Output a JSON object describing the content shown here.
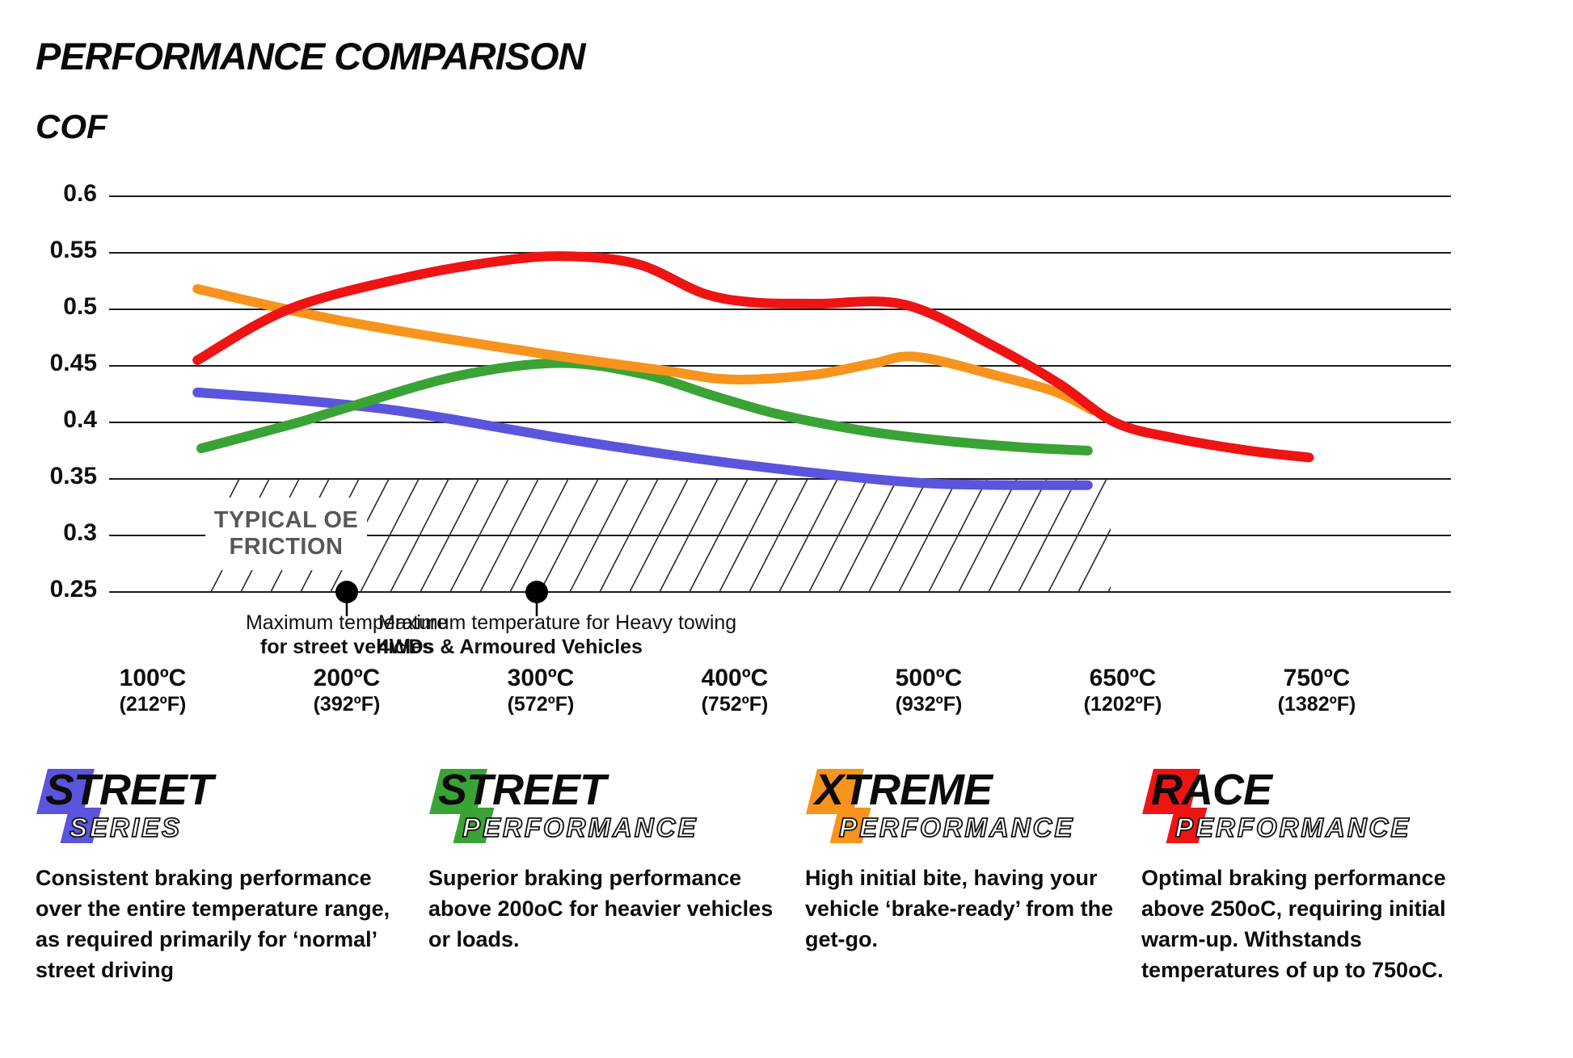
{
  "page": {
    "title": "PERFORMANCE COMPARISON",
    "y_axis_title": "COF"
  },
  "chart_data": {
    "type": "line",
    "title": "PERFORMANCE COMPARISON",
    "ylabel": "COF",
    "ylim": [
      0.25,
      0.6
    ],
    "grid": "horizontal",
    "y_ticks": [
      "0.6",
      "0.55",
      "0.5",
      "0.45",
      "0.4",
      "0.35",
      "0.3",
      "0.25"
    ],
    "y_tick_values": [
      0.6,
      0.55,
      0.5,
      0.45,
      0.4,
      0.35,
      0.3,
      0.25
    ],
    "x_temps": [
      100,
      200,
      300,
      400,
      500,
      650,
      750
    ],
    "x_labels": [
      {
        "c": "100ºC",
        "f": "(212ºF)"
      },
      {
        "c": "200ºC",
        "f": "(392ºF)"
      },
      {
        "c": "300ºC",
        "f": "(572ºF)"
      },
      {
        "c": "400ºC",
        "f": "(752ºF)"
      },
      {
        "c": "500ºC",
        "f": "(932ºF)"
      },
      {
        "c": "650ºC",
        "f": "(1202ºF)"
      },
      {
        "c": "750ºC",
        "f": "(1382ºF)"
      }
    ],
    "series": [
      {
        "name": "Street Series",
        "color": "#5b54dd",
        "points": [
          [
            123,
            0.4265
          ],
          [
            173,
            0.42
          ],
          [
            219,
            0.412
          ],
          [
            257,
            0.402
          ],
          [
            307,
            0.387
          ],
          [
            352,
            0.375
          ],
          [
            398,
            0.364
          ],
          [
            440,
            0.3555
          ],
          [
            477,
            0.349
          ],
          [
            510,
            0.3455
          ],
          [
            566,
            0.3445
          ],
          [
            623,
            0.3445
          ]
        ]
      },
      {
        "name": "Street Performance",
        "color": "#3aa335",
        "points": [
          [
            125,
            0.377
          ],
          [
            173,
            0.399
          ],
          [
            202,
            0.414
          ],
          [
            257,
            0.441
          ],
          [
            309,
            0.4525
          ],
          [
            352,
            0.443
          ],
          [
            390,
            0.423
          ],
          [
            423,
            0.407
          ],
          [
            465,
            0.393
          ],
          [
            510,
            0.384
          ],
          [
            572,
            0.378
          ],
          [
            623,
            0.375
          ]
        ]
      },
      {
        "name": "Xtreme Performance",
        "color": "#f7941d",
        "points": [
          [
            123,
            0.518
          ],
          [
            200,
            0.489
          ],
          [
            300,
            0.461
          ],
          [
            363,
            0.446
          ],
          [
            398,
            0.438
          ],
          [
            440,
            0.442
          ],
          [
            471,
            0.452
          ],
          [
            494,
            0.458
          ],
          [
            554,
            0.441
          ],
          [
            598,
            0.427
          ],
          [
            626,
            0.411
          ]
        ]
      },
      {
        "name": "Race Performance",
        "color": "#ee1414",
        "points": [
          [
            123,
            0.455
          ],
          [
            170,
            0.5
          ],
          [
            230,
            0.528
          ],
          [
            280,
            0.543
          ],
          [
            313,
            0.547
          ],
          [
            350,
            0.54
          ],
          [
            384,
            0.514
          ],
          [
            411,
            0.506
          ],
          [
            442,
            0.505
          ],
          [
            488,
            0.504
          ],
          [
            551,
            0.467
          ],
          [
            601,
            0.434
          ],
          [
            644,
            0.4
          ],
          [
            677,
            0.386
          ],
          [
            715,
            0.375
          ],
          [
            746,
            0.369
          ]
        ]
      }
    ],
    "oe_band": {
      "label_line1": "TYPICAL OE",
      "label_line2": "FRICTION",
      "cof_range": [
        0.25,
        0.35
      ],
      "temp_range": [
        125,
        625
      ]
    },
    "annotations": [
      {
        "line1": "Maximum temperature",
        "line2": "for street vehicles",
        "temp": 200,
        "cof": 0.25
      },
      {
        "line1": "Maximum temperature for Heavy towing",
        "line2": "4WDs & Armoured Vehicles",
        "temp": 300,
        "cof": 0.25
      }
    ]
  },
  "legend": [
    {
      "word1": "STREET",
      "word2": "SERIES",
      "color": "#5b54dd",
      "description": "Consistent braking performance over the entire temperature range, as required primarily for ‘normal’ street driving"
    },
    {
      "word1": "STREET",
      "word2": "PERFORMANCE",
      "color": "#3aa335",
      "description": "Superior braking performance above 200oC for heavier vehicles or loads."
    },
    {
      "word1": "XTREME",
      "word2": "PERFORMANCE",
      "color": "#f7941d",
      "description": "High initial bite, having your vehicle ‘brake-ready’ from the get-go."
    },
    {
      "word1": "RACE",
      "word2": "PERFORMANCE",
      "color": "#ee1414",
      "description": "Optimal braking performance above 250oC, requiring initial warm-up. Withstands temperatures of up to 750oC."
    }
  ]
}
